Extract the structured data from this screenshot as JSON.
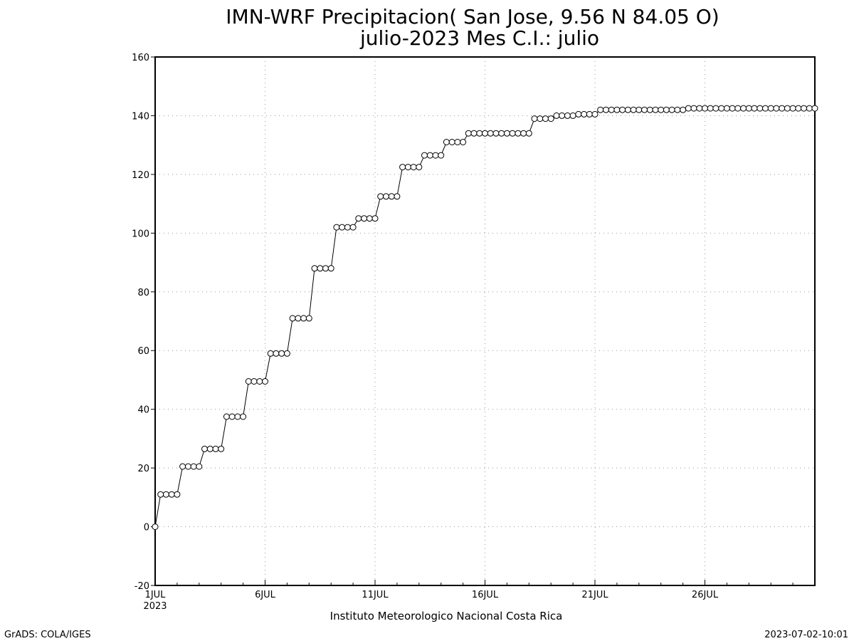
{
  "chart_data": {
    "type": "line",
    "title": "IMN-WRF  Precipitacion( San Jose, 9.56  N 84.05  O)",
    "subtitle": "julio-2023 Mes C.I.: julio",
    "xlabel": "Instituto Meteorologico Nacional Costa Rica",
    "ylabel": "",
    "ylim": [
      -20,
      160
    ],
    "xlim": [
      1,
      31
    ],
    "yticks": [
      -20,
      0,
      20,
      40,
      60,
      80,
      100,
      120,
      140,
      160
    ],
    "xticks": [
      {
        "value": 1,
        "label": "1JUL",
        "sublabel": "2023"
      },
      {
        "value": 6,
        "label": "6JUL",
        "sublabel": ""
      },
      {
        "value": 11,
        "label": "11JUL",
        "sublabel": ""
      },
      {
        "value": 16,
        "label": "16JUL",
        "sublabel": ""
      },
      {
        "value": 21,
        "label": "21JUL",
        "sublabel": ""
      },
      {
        "value": 26,
        "label": "26JUL",
        "sublabel": ""
      }
    ],
    "grid": true,
    "marker": "open-circle",
    "series": [
      {
        "x": [
          1.0,
          1.25,
          1.5,
          1.75,
          2.0,
          2.25,
          2.5,
          2.75,
          3.0,
          3.25,
          3.5,
          3.75,
          4.0,
          4.25,
          4.5,
          4.75,
          5.0,
          5.25,
          5.5,
          5.75,
          6.0,
          6.25,
          6.5,
          6.75,
          7.0,
          7.25,
          7.5,
          7.75,
          8.0,
          8.25,
          8.5,
          8.75,
          9.0,
          9.25,
          9.5,
          9.75,
          10.0,
          10.25,
          10.5,
          10.75,
          11.0,
          11.25,
          11.5,
          11.75,
          12.0,
          12.25,
          12.5,
          12.75,
          13.0,
          13.25,
          13.5,
          13.75,
          14.0,
          14.25,
          14.5,
          14.75,
          15.0,
          15.25,
          15.5,
          15.75,
          16.0,
          16.25,
          16.5,
          16.75,
          17.0,
          17.25,
          17.5,
          17.75,
          18.0,
          18.25,
          18.5,
          18.75,
          19.0,
          19.25,
          19.5,
          19.75,
          20.0,
          20.25,
          20.5,
          20.75,
          21.0,
          21.25,
          21.5,
          21.75,
          22.0,
          22.25,
          22.5,
          22.75,
          23.0,
          23.25,
          23.5,
          23.75,
          24.0,
          24.25,
          24.5,
          24.75,
          25.0,
          25.25,
          25.5,
          25.75,
          26.0,
          26.25,
          26.5,
          26.75,
          27.0,
          27.25,
          27.5,
          27.75,
          28.0,
          28.25,
          28.5,
          28.75,
          29.0,
          29.25,
          29.5,
          29.75,
          30.0,
          30.25,
          30.5,
          30.75,
          31.0
        ],
        "y": [
          0,
          11,
          11,
          11,
          11,
          20.5,
          20.5,
          20.5,
          20.5,
          26.5,
          26.5,
          26.5,
          26.5,
          37.5,
          37.5,
          37.5,
          37.5,
          49.5,
          49.5,
          49.5,
          49.5,
          59,
          59,
          59,
          59,
          71,
          71,
          71,
          71,
          88,
          88,
          88,
          88,
          102,
          102,
          102,
          102,
          105,
          105,
          105,
          105,
          112.5,
          112.5,
          112.5,
          112.5,
          122.5,
          122.5,
          122.5,
          122.5,
          126.5,
          126.5,
          126.5,
          126.5,
          131,
          131,
          131,
          131,
          134,
          134,
          134,
          134,
          134,
          134,
          134,
          134,
          134,
          134,
          134,
          134,
          139,
          139,
          139,
          139,
          140,
          140,
          140,
          140,
          140.5,
          140.5,
          140.5,
          140.5,
          142,
          142,
          142,
          142,
          142,
          142,
          142,
          142,
          142,
          142,
          142,
          142,
          142,
          142,
          142,
          142,
          142.5,
          142.5,
          142.5,
          142.5,
          142.5,
          142.5,
          142.5,
          142.5,
          142.5,
          142.5,
          142.5,
          142.5,
          142.5,
          142.5,
          142.5,
          142.5,
          142.5,
          142.5,
          142.5,
          142.5,
          142.5,
          142.5,
          142.5,
          142.5
        ]
      }
    ]
  },
  "footer": {
    "left": "GrADS: COLA/IGES",
    "right": "2023-07-02-10:01"
  }
}
